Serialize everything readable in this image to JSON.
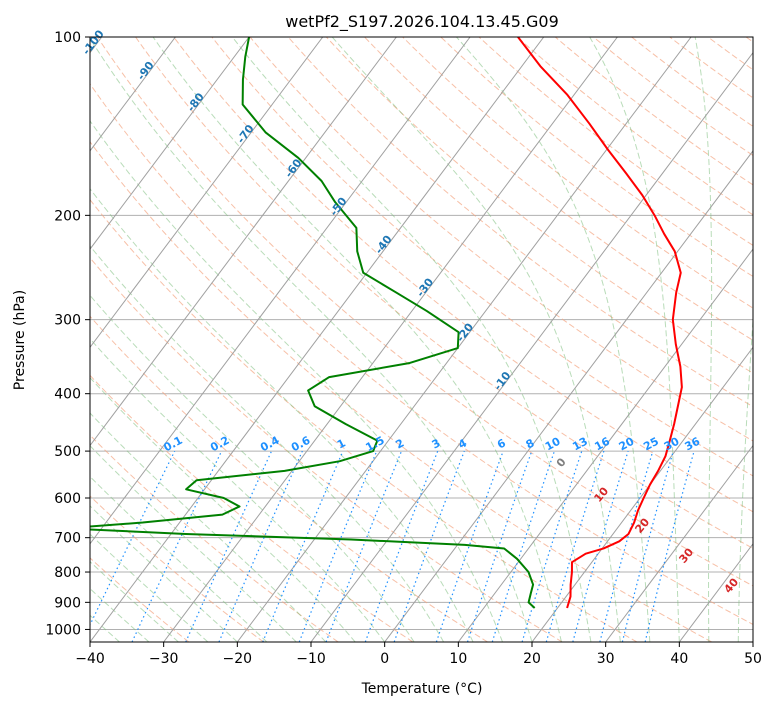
{
  "chart_data": {
    "type": "line",
    "title": "wetPf2_S197.2026.104.13.45.G09",
    "xlabel": "Temperature (°C)",
    "ylabel": "Pressure (hPa)",
    "xlim": [
      -40,
      50
    ],
    "ylim": [
      1050,
      100
    ],
    "y_scale": "log",
    "grid": true,
    "x_ticks": [
      -40,
      -30,
      -20,
      -10,
      0,
      10,
      20,
      30,
      40,
      50
    ],
    "y_ticks": [
      100,
      200,
      300,
      400,
      500,
      600,
      700,
      800,
      900,
      1000
    ],
    "isotherm_labels": [
      -100,
      -90,
      -80,
      -70,
      -60,
      -50,
      -40,
      -30,
      -20,
      -10
    ],
    "mixing_ratio_labels": [
      "0.1",
      "0.2",
      "0.4",
      "0.6",
      "1",
      "1.5",
      "2",
      "3",
      "4",
      "6",
      "8",
      "10",
      "13",
      "16",
      "20",
      "25",
      "30",
      "36"
    ],
    "moist_adiabat_labels": [
      "0",
      "10",
      "20",
      "30",
      "40"
    ],
    "series": [
      {
        "color": "#ff0000",
        "values": [
          {
            "p": 920,
            "t": 21.3
          },
          {
            "p": 880,
            "t": 20.6
          },
          {
            "p": 840,
            "t": 19.4
          },
          {
            "p": 800,
            "t": 18.3
          },
          {
            "p": 770,
            "t": 17.3
          },
          {
            "p": 745,
            "t": 18.3
          },
          {
            "p": 730,
            "t": 20.2
          },
          {
            "p": 710,
            "t": 21.6
          },
          {
            "p": 690,
            "t": 22.1
          },
          {
            "p": 660,
            "t": 21.7
          },
          {
            "p": 630,
            "t": 21.0
          },
          {
            "p": 600,
            "t": 20.5
          },
          {
            "p": 570,
            "t": 20.0
          },
          {
            "p": 540,
            "t": 19.7
          },
          {
            "p": 510,
            "t": 19.2
          },
          {
            "p": 480,
            "t": 18.2
          },
          {
            "p": 450,
            "t": 17.1
          },
          {
            "p": 420,
            "t": 15.8
          },
          {
            "p": 390,
            "t": 14.4
          },
          {
            "p": 360,
            "t": 12.1
          },
          {
            "p": 330,
            "t": 9.2
          },
          {
            "p": 300,
            "t": 6.3
          },
          {
            "p": 270,
            "t": 4.0
          },
          {
            "p": 250,
            "t": 2.6
          },
          {
            "p": 230,
            "t": -0.4
          },
          {
            "p": 215,
            "t": -3.6
          },
          {
            "p": 200,
            "t": -6.8
          },
          {
            "p": 185,
            "t": -10.5
          },
          {
            "p": 170,
            "t": -14.9
          },
          {
            "p": 155,
            "t": -19.8
          },
          {
            "p": 140,
            "t": -25.0
          },
          {
            "p": 125,
            "t": -31.0
          },
          {
            "p": 112,
            "t": -37.5
          },
          {
            "p": 100,
            "t": -43.5
          }
        ]
      },
      {
        "color": "#008000",
        "values": [
          {
            "p": 920,
            "t": 16.9
          },
          {
            "p": 900,
            "t": 15.5
          },
          {
            "p": 870,
            "t": 14.9
          },
          {
            "p": 840,
            "t": 14.3
          },
          {
            "p": 800,
            "t": 12.4
          },
          {
            "p": 760,
            "t": 9.5
          },
          {
            "p": 730,
            "t": 6.7
          },
          {
            "p": 720,
            "t": 1.0
          },
          {
            "p": 705,
            "t": -15.0
          },
          {
            "p": 690,
            "t": -38.0
          },
          {
            "p": 675,
            "t": -55.0
          },
          {
            "p": 660,
            "t": -45.0
          },
          {
            "p": 640,
            "t": -35.0
          },
          {
            "p": 620,
            "t": -33.5
          },
          {
            "p": 600,
            "t": -36.5
          },
          {
            "p": 580,
            "t": -42.5
          },
          {
            "p": 560,
            "t": -42.0
          },
          {
            "p": 540,
            "t": -31.0
          },
          {
            "p": 520,
            "t": -24.5
          },
          {
            "p": 500,
            "t": -21.0
          },
          {
            "p": 480,
            "t": -21.5
          },
          {
            "p": 450,
            "t": -27.5
          },
          {
            "p": 420,
            "t": -33.5
          },
          {
            "p": 395,
            "t": -36.0
          },
          {
            "p": 375,
            "t": -34.5
          },
          {
            "p": 355,
            "t": -25.0
          },
          {
            "p": 335,
            "t": -20.0
          },
          {
            "p": 315,
            "t": -21.5
          },
          {
            "p": 290,
            "t": -28.0
          },
          {
            "p": 270,
            "t": -34.0
          },
          {
            "p": 250,
            "t": -40.5
          },
          {
            "p": 230,
            "t": -43.5
          },
          {
            "p": 210,
            "t": -46.0
          },
          {
            "p": 190,
            "t": -51.5
          },
          {
            "p": 175,
            "t": -55.5
          },
          {
            "p": 160,
            "t": -61.0
          },
          {
            "p": 145,
            "t": -68.0
          },
          {
            "p": 130,
            "t": -74.0
          },
          {
            "p": 118,
            "t": -76.5
          },
          {
            "p": 108,
            "t": -78.5
          },
          {
            "p": 100,
            "t": -80.0
          }
        ]
      }
    ]
  }
}
